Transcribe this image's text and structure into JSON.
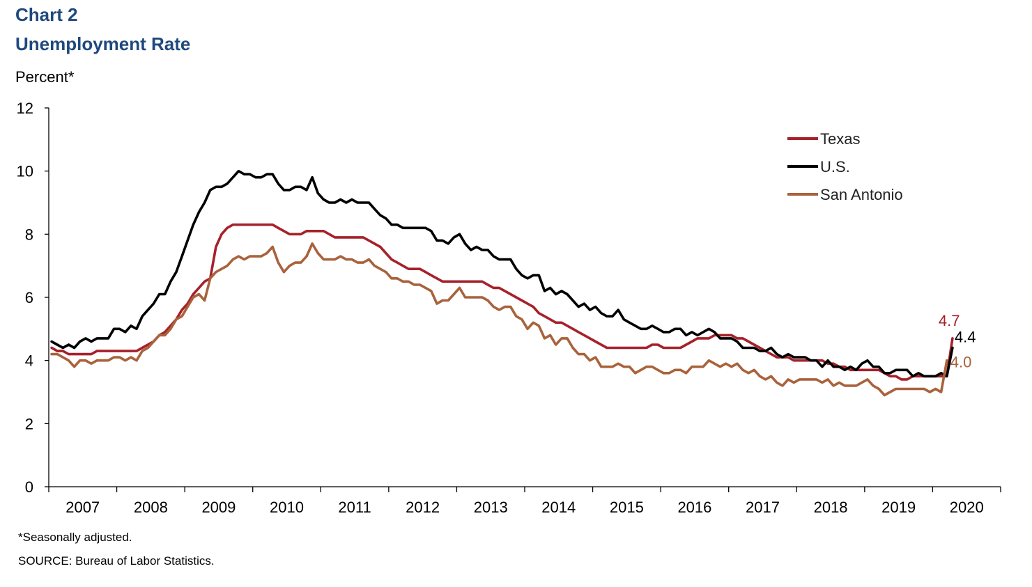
{
  "header": {
    "chart_label": "Chart 2",
    "title": "Unemployment Rate",
    "ylabel": "Percent*"
  },
  "footer": {
    "note": "*Seasonally adjusted.",
    "source": "SOURCE: Bureau of Labor Statistics."
  },
  "chart_data": {
    "type": "line",
    "title": "Unemployment Rate",
    "ylabel": "Percent*",
    "xlabel": "",
    "ylim": [
      0,
      12
    ],
    "yticks": [
      "0",
      "2",
      "4",
      "6",
      "8",
      "10",
      "12"
    ],
    "xticks": [
      "2007",
      "2008",
      "2009",
      "2010",
      "2011",
      "2012",
      "2013",
      "2014",
      "2015",
      "2016",
      "2017",
      "2018",
      "2019",
      "2020"
    ],
    "x_start": "2007-01",
    "x_end": "2020-04",
    "grid": false,
    "legend_position": "top-right",
    "series": [
      {
        "name": "Texas",
        "color": "#a6212a",
        "end_label": "4.7",
        "values": [
          4.4,
          4.3,
          4.3,
          4.2,
          4.2,
          4.2,
          4.2,
          4.2,
          4.3,
          4.3,
          4.3,
          4.3,
          4.3,
          4.3,
          4.3,
          4.3,
          4.4,
          4.5,
          4.6,
          4.8,
          4.9,
          5.1,
          5.3,
          5.6,
          5.8,
          6.1,
          6.3,
          6.5,
          6.6,
          7.6,
          8.0,
          8.2,
          8.3,
          8.3,
          8.3,
          8.3,
          8.3,
          8.3,
          8.3,
          8.3,
          8.2,
          8.1,
          8.0,
          8.0,
          8.0,
          8.1,
          8.1,
          8.1,
          8.1,
          8.0,
          7.9,
          7.9,
          7.9,
          7.9,
          7.9,
          7.9,
          7.8,
          7.7,
          7.6,
          7.4,
          7.2,
          7.1,
          7.0,
          6.9,
          6.9,
          6.9,
          6.8,
          6.7,
          6.6,
          6.5,
          6.5,
          6.5,
          6.5,
          6.5,
          6.5,
          6.5,
          6.5,
          6.4,
          6.3,
          6.3,
          6.2,
          6.1,
          6.0,
          5.9,
          5.8,
          5.7,
          5.5,
          5.4,
          5.3,
          5.2,
          5.2,
          5.1,
          5.0,
          4.9,
          4.8,
          4.7,
          4.6,
          4.5,
          4.4,
          4.4,
          4.4,
          4.4,
          4.4,
          4.4,
          4.4,
          4.4,
          4.5,
          4.5,
          4.4,
          4.4,
          4.4,
          4.4,
          4.5,
          4.6,
          4.7,
          4.7,
          4.7,
          4.8,
          4.8,
          4.8,
          4.8,
          4.7,
          4.7,
          4.6,
          4.5,
          4.4,
          4.3,
          4.2,
          4.1,
          4.1,
          4.1,
          4.0,
          4.0,
          4.0,
          4.0,
          4.0,
          4.0,
          3.9,
          3.9,
          3.8,
          3.8,
          3.7,
          3.7,
          3.7,
          3.7,
          3.7,
          3.7,
          3.6,
          3.5,
          3.5,
          3.4,
          3.4,
          3.5,
          3.5,
          3.5,
          3.5,
          3.5,
          3.5,
          3.5,
          4.7
        ]
      },
      {
        "name": "U.S.",
        "color": "#000000",
        "end_label": "4.4",
        "values": [
          4.6,
          4.5,
          4.4,
          4.5,
          4.4,
          4.6,
          4.7,
          4.6,
          4.7,
          4.7,
          4.7,
          5.0,
          5.0,
          4.9,
          5.1,
          5.0,
          5.4,
          5.6,
          5.8,
          6.1,
          6.1,
          6.5,
          6.8,
          7.3,
          7.8,
          8.3,
          8.7,
          9.0,
          9.4,
          9.5,
          9.5,
          9.6,
          9.8,
          10.0,
          9.9,
          9.9,
          9.8,
          9.8,
          9.9,
          9.9,
          9.6,
          9.4,
          9.4,
          9.5,
          9.5,
          9.4,
          9.8,
          9.3,
          9.1,
          9.0,
          9.0,
          9.1,
          9.0,
          9.1,
          9.0,
          9.0,
          9.0,
          8.8,
          8.6,
          8.5,
          8.3,
          8.3,
          8.2,
          8.2,
          8.2,
          8.2,
          8.2,
          8.1,
          7.8,
          7.8,
          7.7,
          7.9,
          8.0,
          7.7,
          7.5,
          7.6,
          7.5,
          7.5,
          7.3,
          7.2,
          7.2,
          7.2,
          6.9,
          6.7,
          6.6,
          6.7,
          6.7,
          6.2,
          6.3,
          6.1,
          6.2,
          6.1,
          5.9,
          5.7,
          5.8,
          5.6,
          5.7,
          5.5,
          5.4,
          5.4,
          5.6,
          5.3,
          5.2,
          5.1,
          5.0,
          5.0,
          5.1,
          5.0,
          4.9,
          4.9,
          5.0,
          5.0,
          4.8,
          4.9,
          4.8,
          4.9,
          5.0,
          4.9,
          4.7,
          4.7,
          4.7,
          4.6,
          4.4,
          4.4,
          4.4,
          4.3,
          4.3,
          4.4,
          4.2,
          4.1,
          4.2,
          4.1,
          4.1,
          4.1,
          4.0,
          4.0,
          3.8,
          4.0,
          3.8,
          3.8,
          3.7,
          3.8,
          3.7,
          3.9,
          4.0,
          3.8,
          3.8,
          3.6,
          3.6,
          3.7,
          3.7,
          3.7,
          3.5,
          3.6,
          3.5,
          3.5,
          3.5,
          3.6,
          3.5,
          4.4
        ]
      },
      {
        "name": "San Antonio",
        "color": "#a9623b",
        "end_label": "4.0",
        "values": [
          4.2,
          4.2,
          4.1,
          4.0,
          3.8,
          4.0,
          4.0,
          3.9,
          4.0,
          4.0,
          4.0,
          4.1,
          4.1,
          4.0,
          4.1,
          4.0,
          4.3,
          4.4,
          4.6,
          4.8,
          4.8,
          5.0,
          5.3,
          5.4,
          5.7,
          6.0,
          6.1,
          5.9,
          6.6,
          6.8,
          6.9,
          7.0,
          7.2,
          7.3,
          7.2,
          7.3,
          7.3,
          7.3,
          7.4,
          7.6,
          7.1,
          6.8,
          7.0,
          7.1,
          7.1,
          7.3,
          7.7,
          7.4,
          7.2,
          7.2,
          7.2,
          7.3,
          7.2,
          7.2,
          7.1,
          7.1,
          7.2,
          7.0,
          6.9,
          6.8,
          6.6,
          6.6,
          6.5,
          6.5,
          6.4,
          6.4,
          6.3,
          6.2,
          5.8,
          5.9,
          5.9,
          6.1,
          6.3,
          6.0,
          6.0,
          6.0,
          6.0,
          5.9,
          5.7,
          5.6,
          5.7,
          5.7,
          5.4,
          5.3,
          5.0,
          5.2,
          5.1,
          4.7,
          4.8,
          4.5,
          4.7,
          4.7,
          4.4,
          4.2,
          4.2,
          4.0,
          4.1,
          3.8,
          3.8,
          3.8,
          3.9,
          3.8,
          3.8,
          3.6,
          3.7,
          3.8,
          3.8,
          3.7,
          3.6,
          3.6,
          3.7,
          3.7,
          3.6,
          3.8,
          3.8,
          3.8,
          4.0,
          3.9,
          3.8,
          3.9,
          3.8,
          3.9,
          3.7,
          3.6,
          3.7,
          3.5,
          3.4,
          3.5,
          3.3,
          3.2,
          3.4,
          3.3,
          3.4,
          3.4,
          3.4,
          3.4,
          3.3,
          3.4,
          3.2,
          3.3,
          3.2,
          3.2,
          3.2,
          3.3,
          3.4,
          3.2,
          3.1,
          2.9,
          3.0,
          3.1,
          3.1,
          3.1,
          3.1,
          3.1,
          3.1,
          3.0,
          3.1,
          3.0,
          4.0
        ]
      }
    ]
  }
}
